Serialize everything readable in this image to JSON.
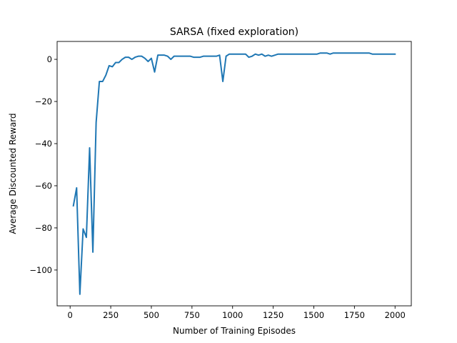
{
  "chart_data": {
    "type": "line",
    "title": "SARSA (fixed exploration)",
    "xlabel": "Number of Training Episodes",
    "ylabel": "Average Discounted Reward",
    "xlim": [
      -80,
      2100
    ],
    "ylim": [
      -117,
      8.5
    ],
    "xticks": [
      0,
      250,
      500,
      750,
      1000,
      1250,
      1500,
      1750,
      2000
    ],
    "xtick_labels": [
      "0",
      "250",
      "500",
      "750",
      "1000",
      "1250",
      "1500",
      "1750",
      "2000"
    ],
    "yticks": [
      0,
      -20,
      -40,
      -60,
      -80,
      -100
    ],
    "ytick_labels": [
      "0",
      "−20",
      "−40",
      "−60",
      "−80",
      "−100"
    ],
    "grid": false,
    "legend": "none",
    "series": [
      {
        "color": "#1f77b4",
        "x": [
          20,
          40,
          60,
          80,
          100,
          120,
          140,
          160,
          180,
          200,
          220,
          240,
          260,
          280,
          300,
          320,
          340,
          360,
          380,
          400,
          420,
          440,
          460,
          480,
          500,
          520,
          540,
          560,
          580,
          600,
          620,
          640,
          660,
          680,
          700,
          720,
          740,
          760,
          780,
          800,
          820,
          840,
          860,
          880,
          900,
          920,
          940,
          960,
          980,
          1000,
          1020,
          1040,
          1060,
          1080,
          1100,
          1120,
          1140,
          1160,
          1180,
          1200,
          1220,
          1240,
          1260,
          1280,
          1300,
          1320,
          1340,
          1360,
          1380,
          1400,
          1420,
          1440,
          1460,
          1480,
          1500,
          1520,
          1540,
          1560,
          1580,
          1600,
          1620,
          1640,
          1660,
          1680,
          1700,
          1720,
          1740,
          1760,
          1780,
          1800,
          1820,
          1840,
          1860,
          1880,
          1900,
          1920,
          1940,
          1960,
          1980,
          2000
        ],
        "y": [
          -69.5,
          -61,
          -111.5,
          -80.5,
          -84.5,
          -42,
          -91.5,
          -30,
          -10.5,
          -10.5,
          -7.5,
          -3,
          -3.5,
          -1.5,
          -1.5,
          0,
          1,
          1,
          0,
          1,
          1.5,
          1.5,
          0.5,
          -1,
          0.5,
          -6,
          2,
          2,
          2,
          1.5,
          0,
          1.5,
          1.5,
          1.5,
          1.5,
          1.5,
          1.5,
          1,
          1,
          1,
          1.5,
          1.5,
          1.5,
          1.5,
          1.5,
          2,
          -10.5,
          1.5,
          2.5,
          2.5,
          2.5,
          2.5,
          2.5,
          2.5,
          1,
          1.5,
          2.5,
          2,
          2.5,
          1.5,
          2,
          1.5,
          2,
          2.5,
          2.5,
          2.5,
          2.5,
          2.5,
          2.5,
          2.5,
          2.5,
          2.5,
          2.5,
          2.5,
          2.5,
          2.5,
          3,
          3,
          3,
          2.5,
          3,
          3,
          3,
          3,
          3,
          3,
          3,
          3,
          3,
          3,
          3,
          3,
          2.5,
          2.5,
          2.5,
          2.5,
          2.5,
          2.5,
          2.5,
          2.5
        ]
      }
    ]
  }
}
